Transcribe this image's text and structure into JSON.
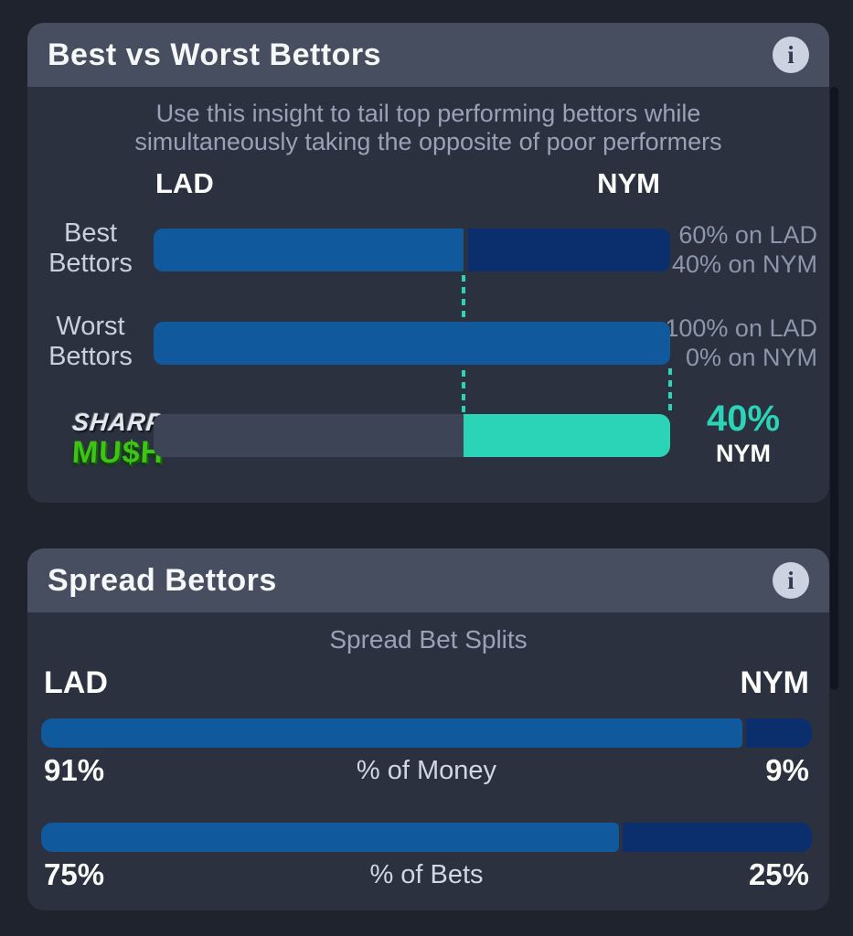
{
  "colors": {
    "page_bg": "#1f232e",
    "panel_bg": "#2b313f",
    "header_bg": "#474e60",
    "bar_blue": "#0f599c",
    "bar_navy": "#0b2e6d",
    "bar_teal": "#2bd4b6",
    "bar_gray": "#3d4456",
    "muted_text": "#99a2b6",
    "annotation_text": "#8d97ac"
  },
  "panel1": {
    "title": "Best vs Worst Bettors",
    "info_icon_glyph": "i",
    "description_line1": "Use this insight to tail top performing bettors while",
    "description_line2": "simultaneously taking the opposite of poor performers",
    "team_left": "LAD",
    "team_right": "NYM",
    "rows": [
      {
        "label_line1": "Best",
        "label_line2": "Bettors",
        "left_pct": 60,
        "annotation_line1": "60% on LAD",
        "annotation_line2": "40% on NYM"
      },
      {
        "label_line1": "Worst",
        "label_line2": "Bettors",
        "left_pct": 100,
        "annotation_line1": "100% on LAD",
        "annotation_line2": "0% on NYM"
      }
    ],
    "pick": {
      "logo_line1": "SHARP",
      "logo_line2": "MU$H",
      "left_pct": 60,
      "value": "40%",
      "team": "NYM"
    },
    "guide_line_1_pct": 60,
    "guide_line_2_pct": 100
  },
  "panel2": {
    "title": "Spread Bettors",
    "info_icon_glyph": "i",
    "subtitle": "Spread Bet Splits",
    "team_left": "LAD",
    "team_right": "NYM",
    "bars": [
      {
        "left_pct": 91,
        "left_label": "91%",
        "center_label": "% of Money",
        "right_label": "9%"
      },
      {
        "left_pct": 75,
        "left_label": "75%",
        "center_label": "% of Bets",
        "right_label": "25%"
      }
    ]
  },
  "chart_data": [
    {
      "type": "bar",
      "orientation": "horizontal",
      "title": "Best vs Worst Bettors",
      "subtitle": "Use this insight to tail top performing bettors while simultaneously taking the opposite of poor performers",
      "categories": [
        "Best Bettors",
        "Worst Bettors",
        "Sharp Mush Pick"
      ],
      "series": [
        {
          "name": "LAD",
          "color": "#0f599c",
          "values": [
            60,
            100,
            0
          ]
        },
        {
          "name": "NYM",
          "color": "#0b2e6d",
          "values": [
            40,
            0,
            40
          ]
        }
      ],
      "annotations": [
        "60% on LAD / 40% on NYM",
        "100% on LAD / 0% on NYM",
        "40% NYM"
      ],
      "highlight": {
        "category": "Sharp Mush Pick",
        "team": "NYM",
        "value_pct": 40,
        "color": "#2bd4b6"
      },
      "xlim": [
        0,
        100
      ],
      "grid": false,
      "legend_position": "top"
    },
    {
      "type": "bar",
      "orientation": "horizontal",
      "title": "Spread Bettors",
      "subtitle": "Spread Bet Splits",
      "categories": [
        "% of Money",
        "% of Bets"
      ],
      "series": [
        {
          "name": "LAD",
          "color": "#0f599c",
          "values": [
            91,
            75
          ]
        },
        {
          "name": "NYM",
          "color": "#0b2e6d",
          "values": [
            9,
            25
          ]
        }
      ],
      "xlim": [
        0,
        100
      ],
      "grid": false,
      "legend_position": "top"
    }
  ]
}
